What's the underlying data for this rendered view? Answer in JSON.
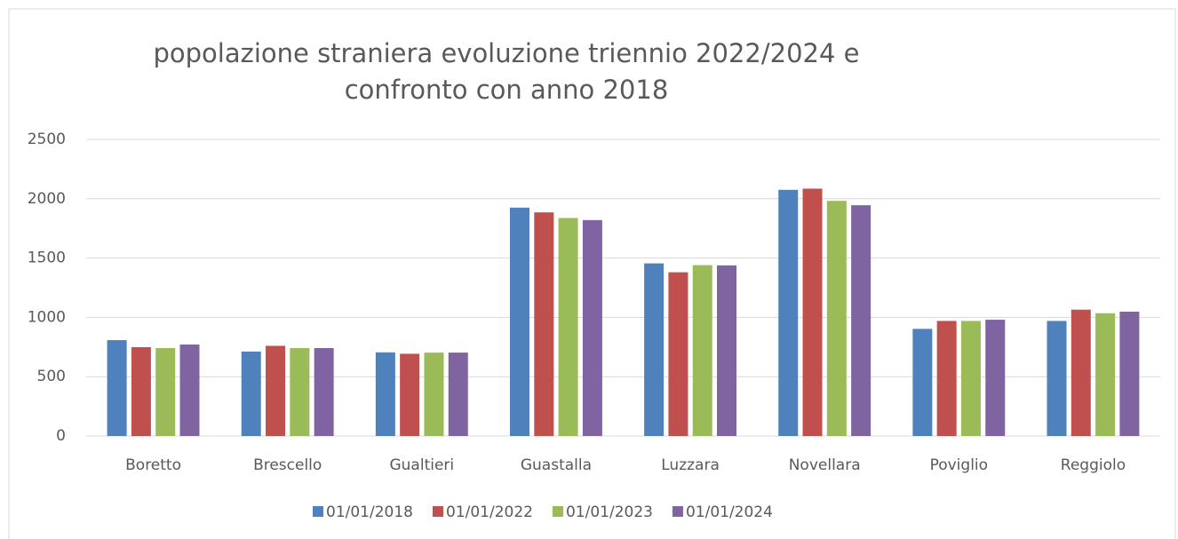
{
  "chart_data": {
    "type": "bar",
    "title": "popolazione straniera evoluzione triennio 2022/2024 e confronto con anno 2018",
    "categories": [
      "Boretto",
      "Brescello",
      "Gualtieri",
      "Guastalla",
      "Luzzara",
      "Novellara",
      "Poviglio",
      "Reggiolo"
    ],
    "series": [
      {
        "name": "01/01/2018",
        "color": "#4f81bd",
        "values": [
          808,
          712,
          705,
          1925,
          1455,
          2075,
          903,
          970
        ]
      },
      {
        "name": "01/01/2022",
        "color": "#c0504d",
        "values": [
          749,
          760,
          693,
          1885,
          1380,
          2085,
          970,
          1065
        ]
      },
      {
        "name": "01/01/2023",
        "color": "#9bbb59",
        "values": [
          741,
          741,
          703,
          1838,
          1440,
          1982,
          970,
          1035
        ]
      },
      {
        "name": "01/01/2024",
        "color": "#8064a2",
        "values": [
          771,
          741,
          703,
          1820,
          1438,
          1945,
          980,
          1048
        ]
      }
    ],
    "ylim": [
      0,
      2500
    ],
    "yticks": [
      0,
      500,
      1000,
      1500,
      2000,
      2500
    ],
    "grid": true,
    "legend": "bottom"
  }
}
